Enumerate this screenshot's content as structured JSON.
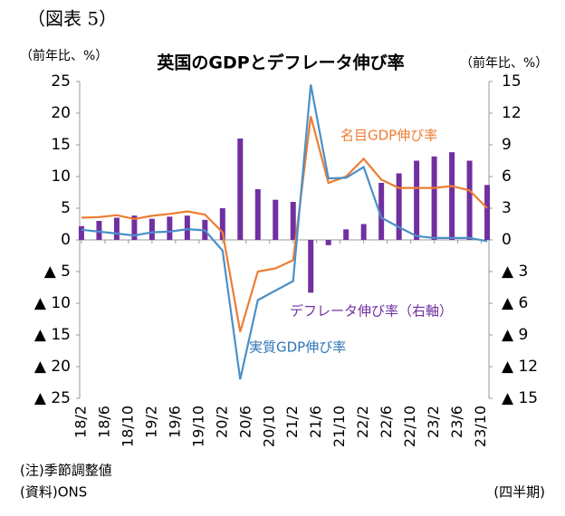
{
  "chart_data": {
    "type": "combo",
    "header": "（図表 5）",
    "title": "英国のGDPとデフレータ伸び率",
    "y_label": "（前年比、%）",
    "y2_label": "（前年比、%）",
    "note": "(注)季節調整値",
    "source": "(資料)ONS",
    "x_label": "(四半期)",
    "x": [
      0,
      3,
      6,
      9,
      12,
      15,
      18,
      21,
      24,
      27,
      30,
      33,
      36,
      39,
      42,
      45,
      48,
      51,
      54,
      57,
      60,
      63,
      66,
      69
    ],
    "xlim": [
      -0.3,
      69.3
    ],
    "xticks": [
      {
        "value": 0,
        "label": "18/2"
      },
      {
        "value": 4,
        "label": "18/6"
      },
      {
        "value": 8,
        "label": "18/10"
      },
      {
        "value": 12,
        "label": "19/2"
      },
      {
        "value": 16,
        "label": "19/6"
      },
      {
        "value": 20,
        "label": "19/10"
      },
      {
        "value": 24,
        "label": "20/2"
      },
      {
        "value": 28,
        "label": "20/6"
      },
      {
        "value": 32,
        "label": "20/10"
      },
      {
        "value": 36,
        "label": "21/2"
      },
      {
        "value": 40,
        "label": "21/6"
      },
      {
        "value": 44,
        "label": "21/10"
      },
      {
        "value": 48,
        "label": "22/2"
      },
      {
        "value": 52,
        "label": "22/6"
      },
      {
        "value": 56,
        "label": "22/10"
      },
      {
        "value": 60,
        "label": "23/2"
      },
      {
        "value": 64,
        "label": "23/6"
      },
      {
        "value": 68,
        "label": "23/10"
      }
    ],
    "ylim": [
      -25,
      25
    ],
    "yticks": [
      25,
      20,
      15,
      10,
      5,
      0,
      {
        "value": -5,
        "label": "▲ 5"
      },
      {
        "value": -10,
        "label": "▲ 10"
      },
      {
        "value": -15,
        "label": "▲ 15"
      },
      {
        "value": -20,
        "label": "▲ 20"
      },
      {
        "value": -25,
        "label": "▲ 25"
      }
    ],
    "y2lim": [
      -15,
      15
    ],
    "y2ticks": [
      15,
      12,
      9,
      6,
      3,
      0,
      {
        "value": -3,
        "label": "▲ 3"
      },
      {
        "value": -6,
        "label": "▲ 6"
      },
      {
        "value": -9,
        "label": "▲ 9"
      },
      {
        "value": -12,
        "label": "▲ 12"
      },
      {
        "value": -15,
        "label": "▲ 15"
      }
    ],
    "series": [
      {
        "name": "デフレータ伸び率（右軸）",
        "type": "bar",
        "axis": "y2",
        "color": "#7030a0",
        "values": [
          1.3,
          1.8,
          2.1,
          2.3,
          2.0,
          2.2,
          2.3,
          1.9,
          3.0,
          9.6,
          4.8,
          3.8,
          3.6,
          -5.0,
          -0.5,
          1.0,
          1.5,
          5.4,
          6.3,
          7.5,
          7.9,
          8.3,
          7.5,
          5.2
        ]
      },
      {
        "name": "名目GDP伸び率",
        "type": "line",
        "color": "#ed7d31",
        "values": [
          3.5,
          3.6,
          3.9,
          3.3,
          3.8,
          4.1,
          4.5,
          4.0,
          1.2,
          -14.5,
          -5.0,
          -4.5,
          -3.2,
          19.5,
          9.0,
          10.0,
          12.8,
          9.5,
          8.2,
          8.2,
          8.2,
          8.5,
          7.8,
          5.0
        ]
      },
      {
        "name": "実質GDP伸び率",
        "type": "line",
        "color": "#4a90c8",
        "values": [
          1.6,
          1.3,
          1.0,
          0.7,
          1.2,
          1.3,
          1.7,
          1.5,
          -1.7,
          -22.0,
          -9.5,
          -8.0,
          -6.5,
          24.5,
          9.7,
          9.8,
          11.5,
          3.5,
          2.0,
          0.6,
          0.3,
          0.3,
          0.3,
          -0.2
        ]
      }
    ]
  }
}
